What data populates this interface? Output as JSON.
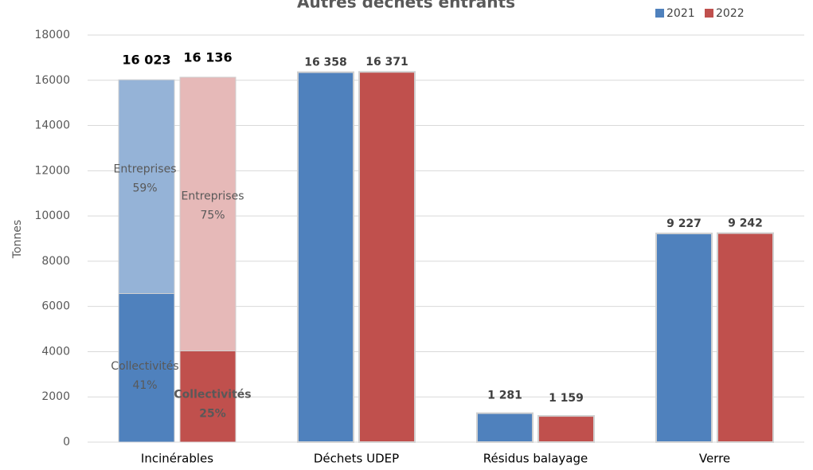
{
  "chart_data": {
    "type": "bar",
    "title": "Autres déchets entrants",
    "y_label": "Tonnes",
    "categories": [
      "Incinérables",
      "Déchets UDEP",
      "Résidus balayage",
      "Verre"
    ],
    "series": [
      {
        "name": "2021",
        "color": "#4f81bd",
        "values": [
          16023,
          16358,
          1281,
          9227
        ],
        "value_labels": [
          "16 023",
          "16 358",
          "1 281",
          "9 227"
        ],
        "shares": [
          [
            {
              "name": "Collectivités",
              "value": 41,
              "label": "41%",
              "color": "#4f81bd"
            },
            {
              "name": "Entreprises",
              "value": 59,
              "label": "59%",
              "color": "#95b3d7"
            }
          ],
          null,
          null,
          null
        ]
      },
      {
        "name": "2022",
        "color": "#c0504d",
        "values": [
          16136,
          16371,
          1159,
          9242
        ],
        "value_labels": [
          "16 136",
          "16 371",
          "1 159",
          "9 242"
        ],
        "shares": [
          [
            {
              "name": "Collectivités",
              "value": 25,
              "label": "25%",
              "color": "#c0504d"
            },
            {
              "name": "Entreprises",
              "value": 75,
              "label": "75%",
              "color": "#e6b9b8"
            }
          ],
          null,
          null,
          null
        ]
      }
    ],
    "ylim": [
      0,
      18000
    ],
    "yticks": [
      0,
      2000,
      4000,
      6000,
      8000,
      10000,
      12000,
      14000,
      16000,
      18000
    ],
    "grid": true,
    "legend": "top-right"
  }
}
